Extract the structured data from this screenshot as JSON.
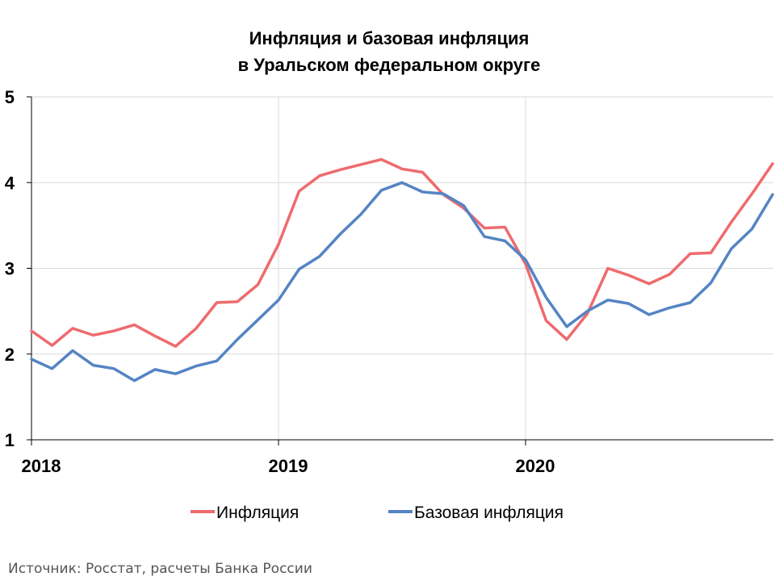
{
  "chart_data": {
    "type": "line",
    "title_line1": "Инфляция и базовая инфляция",
    "title_line2": "в  Уральском федеральном округе",
    "ylim": [
      1,
      5
    ],
    "yticks": [
      "1",
      "2",
      "3",
      "4",
      "5"
    ],
    "xticks": [
      "2018",
      "2019",
      "2020"
    ],
    "grid": true,
    "legend_position": "bottom",
    "series": [
      {
        "name": "Инфляция",
        "color": "#ee6b6e",
        "values": [
          2.27,
          2.1,
          2.3,
          2.22,
          2.27,
          2.34,
          2.21,
          2.09,
          2.3,
          2.6,
          2.61,
          2.81,
          3.28,
          3.9,
          4.08,
          4.15,
          4.21,
          4.27,
          4.16,
          4.12,
          3.86,
          3.7,
          3.47,
          3.48,
          3.05,
          2.39,
          2.17,
          2.47,
          3.0,
          2.92,
          2.82,
          2.93,
          3.17,
          3.18,
          3.54,
          3.87,
          4.22
        ]
      },
      {
        "name": "Базовая инфляция",
        "color": "#5584c4",
        "values": [
          1.94,
          1.83,
          2.04,
          1.87,
          1.83,
          1.69,
          1.82,
          1.77,
          1.86,
          1.92,
          2.17,
          2.4,
          2.63,
          2.99,
          3.14,
          3.4,
          3.63,
          3.91,
          4.0,
          3.89,
          3.87,
          3.73,
          3.37,
          3.32,
          3.1,
          2.66,
          2.32,
          2.5,
          2.63,
          2.59,
          2.46,
          2.54,
          2.6,
          2.83,
          3.23,
          3.46,
          3.86
        ]
      }
    ]
  },
  "source_text": "Источник: Росстат, расчеты Банка России"
}
